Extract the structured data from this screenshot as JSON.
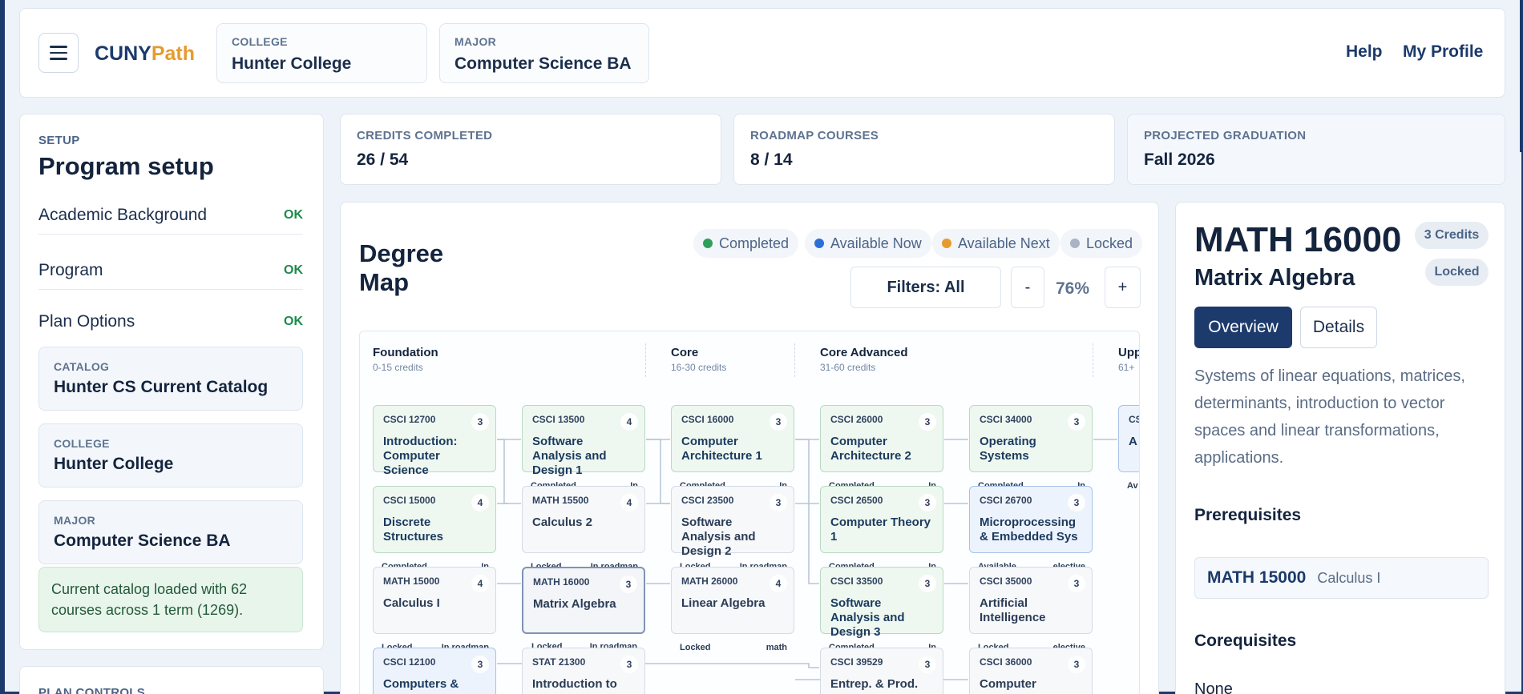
{
  "header": {
    "brand_a": "CUNY",
    "brand_b": "Path",
    "college_label": "COLLEGE",
    "college_value": "Hunter College",
    "major_label": "MAJOR",
    "major_value": "Computer Science BA",
    "help": "Help",
    "profile": "My Profile"
  },
  "sidebar": {
    "eyebrow": "SETUP",
    "title": "Program setup",
    "steps": [
      {
        "label": "Academic Background",
        "status": "OK"
      },
      {
        "label": "Program",
        "status": "OK"
      },
      {
        "label": "Plan Options",
        "status": "OK"
      }
    ],
    "catalog_label": "CATALOG",
    "catalog_value": "Hunter CS Current Catalog",
    "college_label": "COLLEGE",
    "college_value": "Hunter College",
    "major_label": "MAJOR",
    "major_value": "Computer Science BA",
    "notice": "Current catalog loaded with 62 courses across 1 term (1269).",
    "plan_controls": "PLAN CONTROLS"
  },
  "stats": [
    {
      "label": "CREDITS COMPLETED",
      "value": "26 / 54"
    },
    {
      "label": "ROADMAP COURSES",
      "value": "8 / 14"
    },
    {
      "label": "PROJECTED GRADUATION",
      "value": "Fall 2026"
    }
  ],
  "map": {
    "title": "Degree Map",
    "legend": [
      {
        "label": "Completed",
        "color": "#2e9e5b"
      },
      {
        "label": "Available Now",
        "color": "#2b6fd6"
      },
      {
        "label": "Available Next",
        "color": "#e59b2d"
      },
      {
        "label": "Locked",
        "color": "#a9b4c3"
      }
    ],
    "filters": "Filters: All",
    "zoom_out": "-",
    "zoom": "76%",
    "zoom_in": "+",
    "columns": [
      {
        "title": "Foundation",
        "sub": "0-15 credits"
      },
      {
        "title": "Core",
        "sub": "16-30 credits"
      },
      {
        "title": "Core Advanced",
        "sub": "31-60 credits"
      },
      {
        "title": "Upp",
        "sub": "61+"
      }
    ],
    "nodes": [
      {
        "code": "CSCI 12700",
        "cr": "3",
        "name": "Introduction: Computer Science",
        "l": "",
        "r": "",
        "state": "completed"
      },
      {
        "code": "CSCI 13500",
        "cr": "4",
        "name": "Software Analysis and Design 1",
        "l": "Completed",
        "r": "In",
        "state": "completed"
      },
      {
        "code": "CSCI 16000",
        "cr": "3",
        "name": "Computer Architecture 1",
        "l": "Completed",
        "r": "In",
        "state": "completed"
      },
      {
        "code": "CSCI 26000",
        "cr": "3",
        "name": "Computer Architecture 2",
        "l": "Completed",
        "r": "In",
        "state": "completed"
      },
      {
        "code": "CSCI 34000",
        "cr": "3",
        "name": "Operating Systems",
        "l": "Completed",
        "r": "In",
        "state": "completed"
      },
      {
        "code": "CS",
        "cr": "",
        "name": "A A",
        "l": "Av No",
        "r": "",
        "state": "avail"
      },
      {
        "code": "CSCI 15000",
        "cr": "4",
        "name": "Discrete Structures",
        "l": "Completed",
        "r": "In",
        "state": "completed"
      },
      {
        "code": "MATH 15500",
        "cr": "4",
        "name": "Calculus 2",
        "l": "Locked",
        "r": "In roadmap",
        "state": "locked"
      },
      {
        "code": "CSCI 23500",
        "cr": "3",
        "name": "Software Analysis and Design 2",
        "l": "Locked",
        "r": "In roadmap",
        "state": "locked"
      },
      {
        "code": "CSCI 26500",
        "cr": "3",
        "name": "Computer Theory 1",
        "l": "Completed",
        "r": "In",
        "state": "completed"
      },
      {
        "code": "CSCI 26700",
        "cr": "3",
        "name": "Microprocessing & Embedded Sys",
        "l": "Available",
        "r": "elective",
        "state": "avail"
      },
      {
        "code": "MATH 15000",
        "cr": "4",
        "name": "Calculus I",
        "l": "Locked",
        "r": "In roadmap",
        "state": "locked"
      },
      {
        "code": "MATH 16000",
        "cr": "3",
        "name": "Matrix Algebra",
        "l": "Locked",
        "r": "In roadmap",
        "state": "selected"
      },
      {
        "code": "MATH 26000",
        "cr": "4",
        "name": "Linear Algebra",
        "l": "Locked",
        "r": "math",
        "state": "locked"
      },
      {
        "code": "CSCI 33500",
        "cr": "3",
        "name": "Software Analysis and Design 3",
        "l": "Completed",
        "r": "In",
        "state": "completed"
      },
      {
        "code": "CSCI 35000",
        "cr": "3",
        "name": "Artificial Intelligence",
        "l": "Locked",
        "r": "elective",
        "state": "locked"
      },
      {
        "code": "CSCI 12100",
        "cr": "3",
        "name": "Computers &",
        "l": "",
        "r": "",
        "state": "avail"
      },
      {
        "code": "STAT 21300",
        "cr": "3",
        "name": "Introduction to",
        "l": "",
        "r": "",
        "state": "locked"
      },
      {
        "code": "CSCI 39529",
        "cr": "3",
        "name": "Entrep. & Prod.",
        "l": "",
        "r": "",
        "state": "locked"
      },
      {
        "code": "CSCI 36000",
        "cr": "3",
        "name": "Computer",
        "l": "",
        "r": "",
        "state": "locked"
      }
    ]
  },
  "detail": {
    "code": "MATH 16000",
    "name": "Matrix Algebra",
    "credits": "3 Credits",
    "status": "Locked",
    "tab_overview": "Overview",
    "tab_details": "Details",
    "description": "Systems of linear equations, matrices, determinants, introduction to vector spaces and linear transformations, applications.",
    "prereq_heading": "Prerequisites",
    "prereq_code": "MATH 15000",
    "prereq_name": "Calculus I",
    "coreq_heading": "Corequisites",
    "coreq_value": "None"
  }
}
